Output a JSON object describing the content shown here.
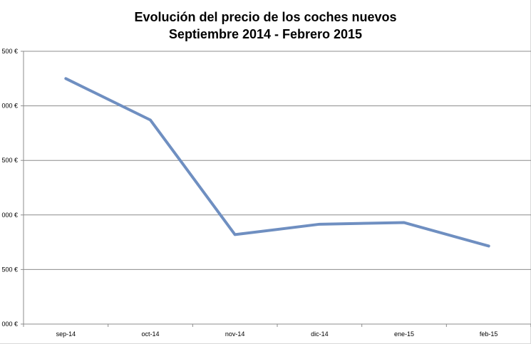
{
  "chart_data": {
    "type": "line",
    "title": [
      "Evolución del precio de los coches nuevos",
      "Septiembre 2014 - Febrero 2015"
    ],
    "xlabel": "",
    "ylabel": "",
    "categories": [
      "sep-14",
      "oct-14",
      "nov-14",
      "dic-14",
      "ene-15",
      "feb-15"
    ],
    "y_tick_labels": [
      "000 €",
      "500 €",
      "000 €",
      "500 €",
      "000 €",
      "500 €"
    ],
    "series": [
      {
        "values": [
          4.5,
          3.74,
          1.64,
          1.83,
          1.86,
          1.43
        ],
        "color": "#6f8fc1"
      }
    ],
    "ylim": [
      0,
      5
    ],
    "y_ticks": [
      0,
      1,
      2,
      3,
      4,
      5
    ],
    "grid": true,
    "legend": "none"
  }
}
